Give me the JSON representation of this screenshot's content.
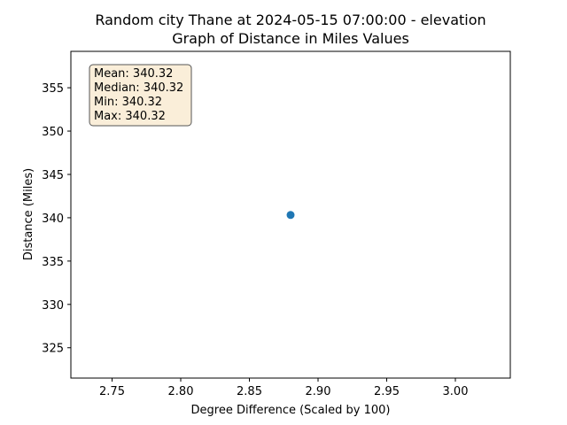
{
  "chart_data": {
    "type": "scatter",
    "title": "Random city Thane at 2024-05-15 07:00:00  - elevation",
    "subtitle": "Graph of Distance in Miles Values",
    "xlabel": "Degree Difference (Scaled by 100)",
    "ylabel": "Distance (Miles)",
    "xlim": [
      2.72,
      3.04
    ],
    "ylim": [
      321.5,
      359.2
    ],
    "x_ticks": [
      2.75,
      2.8,
      2.85,
      2.9,
      2.95,
      3.0
    ],
    "x_tick_labels": [
      "2.75",
      "2.80",
      "2.85",
      "2.90",
      "2.95",
      "3.00"
    ],
    "y_ticks": [
      325,
      330,
      335,
      340,
      345,
      350,
      355
    ],
    "y_tick_labels": [
      "325",
      "330",
      "335",
      "340",
      "345",
      "350",
      "355"
    ],
    "grid": false,
    "series": [
      {
        "points": [
          {
            "x": 2.88,
            "y": 340.32
          }
        ],
        "color": "#1f77b4"
      }
    ],
    "stats_box": {
      "lines": [
        "Mean: 340.32",
        "Median: 340.32",
        "Min: 340.32",
        "Max: 340.32"
      ],
      "placement": "top-left",
      "fill": "#f5deb3",
      "edge": "#555555"
    }
  }
}
